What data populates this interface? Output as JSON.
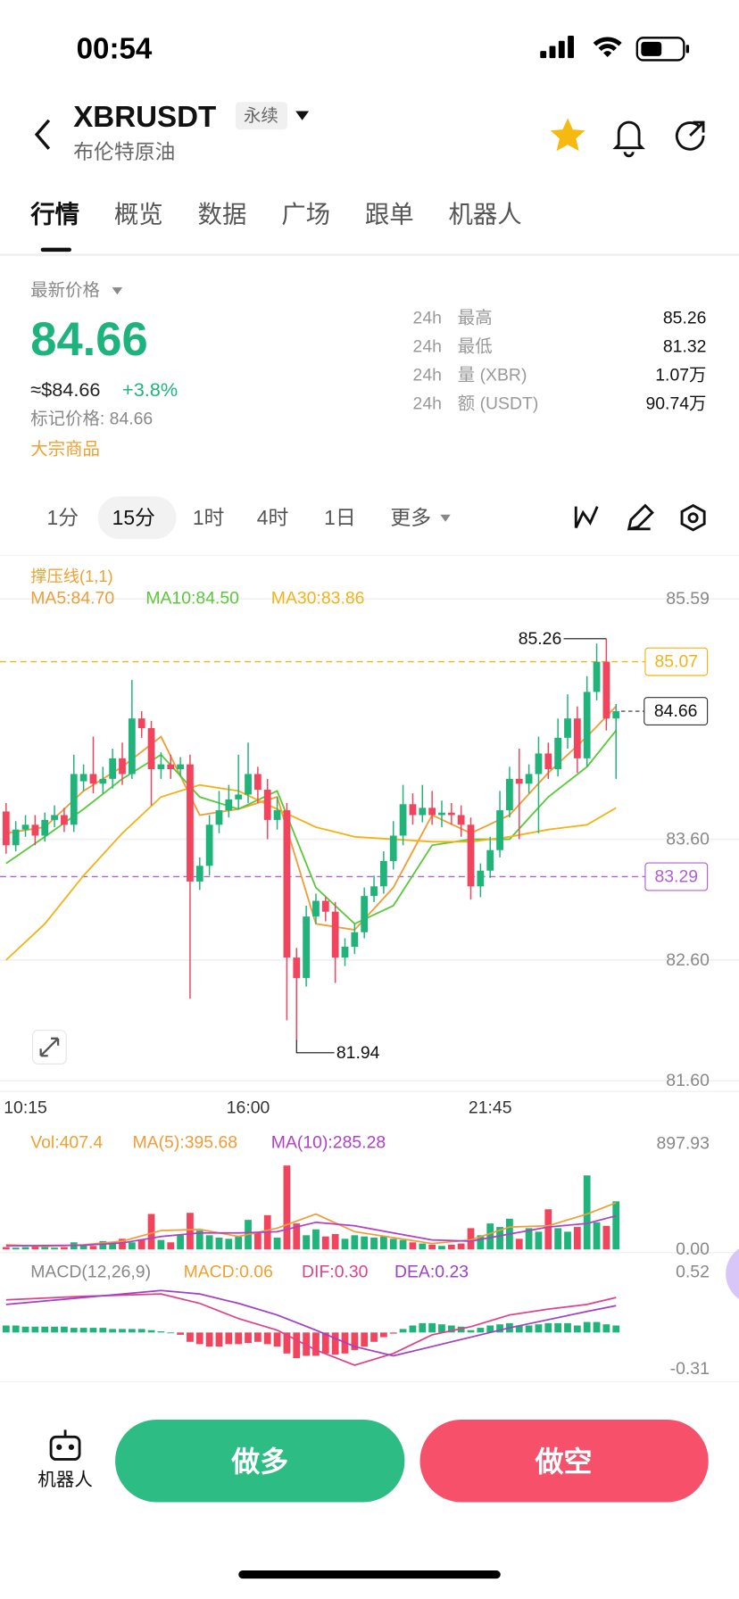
{
  "status": {
    "time": "00:54"
  },
  "header": {
    "symbol": "XBRUSDT",
    "tag": "永续",
    "subtitle": "布伦特原油"
  },
  "tabs": [
    "行情",
    "概览",
    "数据",
    "广场",
    "跟单",
    "机器人"
  ],
  "ticker": {
    "label": "最新价格",
    "price": "84.66",
    "approx": "≈$84.66",
    "change": "+3.8%",
    "mark_price": "标记价格: 84.66",
    "category": "大宗商品"
  },
  "stats": {
    "rows": [
      [
        "24h",
        "最高",
        "85.26"
      ],
      [
        "24h",
        "最低",
        "81.32"
      ],
      [
        "24h",
        "量 (XBR)",
        "1.07万"
      ],
      [
        "24h",
        "额 (USDT)",
        "90.74万"
      ]
    ]
  },
  "intervals": [
    "1分",
    "15分",
    "1时",
    "4时",
    "1日",
    "更多"
  ],
  "chart_data": [
    {
      "type": "candlestick",
      "indicator": "撑压线(1,1)",
      "up_color": "#20b37a",
      "down_color": "#f2455d",
      "open": [
        83.83,
        83.55,
        83.68,
        83.72,
        83.63,
        83.76,
        83.8,
        83.72,
        84.08,
        84.14,
        84.06,
        84.1,
        84.27,
        84.14,
        84.6,
        84.52,
        84.18,
        84.22,
        84.18,
        84.22,
        83.25,
        83.38,
        83.72,
        83.84,
        83.93,
        83.97,
        84.14,
        84.01,
        83.76,
        83.84,
        82.62,
        82.45,
        82.96,
        83.09,
        83.0,
        82.62,
        82.71,
        82.83,
        83.13,
        83.21,
        83.42,
        83.63,
        83.89,
        83.8,
        83.86,
        83.8,
        83.82,
        83.8,
        83.72,
        83.21,
        83.34,
        83.51,
        83.84,
        84.1,
        84.06,
        84.14,
        84.31,
        84.18,
        84.44,
        84.6,
        84.27,
        84.82,
        85.07,
        84.6
      ],
      "high": [
        83.9,
        83.75,
        83.8,
        83.8,
        83.82,
        83.88,
        83.86,
        84.3,
        84.22,
        84.45,
        84.2,
        84.35,
        84.4,
        84.92,
        84.66,
        84.58,
        84.32,
        84.3,
        84.28,
        84.3,
        83.45,
        83.8,
        84.0,
        84.05,
        84.3,
        84.4,
        84.2,
        84.1,
        83.95,
        83.9,
        82.7,
        83.05,
        83.15,
        83.12,
        83.08,
        82.78,
        82.9,
        83.2,
        83.3,
        83.5,
        83.75,
        84.05,
        83.98,
        84.05,
        84.0,
        83.92,
        83.9,
        83.88,
        83.78,
        83.4,
        83.62,
        84.0,
        84.2,
        84.35,
        84.22,
        84.45,
        84.4,
        84.6,
        84.8,
        84.7,
        84.95,
        85.22,
        85.26,
        84.72
      ],
      "low": [
        83.48,
        83.5,
        83.62,
        83.55,
        83.58,
        83.7,
        83.66,
        83.66,
        84.0,
        83.98,
        83.98,
        84.02,
        84.05,
        84.1,
        84.44,
        83.88,
        84.1,
        84.1,
        84.12,
        82.28,
        83.18,
        83.3,
        83.65,
        83.78,
        83.85,
        83.9,
        83.9,
        83.6,
        83.68,
        82.1,
        81.94,
        82.38,
        82.9,
        82.92,
        82.41,
        82.55,
        82.65,
        82.78,
        83.08,
        83.15,
        83.35,
        83.55,
        83.72,
        83.74,
        83.72,
        83.7,
        83.72,
        83.62,
        83.1,
        83.12,
        83.28,
        83.45,
        83.78,
        83.6,
        83.98,
        83.65,
        84.1,
        84.12,
        84.35,
        84.15,
        84.2,
        84.75,
        84.5,
        84.1
      ],
      "close": [
        83.55,
        83.68,
        83.72,
        83.63,
        83.76,
        83.8,
        83.72,
        84.14,
        84.14,
        84.06,
        84.1,
        84.27,
        84.14,
        84.6,
        84.52,
        84.18,
        84.22,
        84.18,
        84.22,
        83.25,
        83.38,
        83.72,
        83.84,
        83.93,
        83.97,
        84.14,
        84.01,
        83.76,
        83.84,
        82.62,
        82.45,
        82.96,
        83.09,
        83.0,
        82.62,
        82.71,
        82.83,
        83.13,
        83.21,
        83.42,
        83.63,
        83.89,
        83.8,
        83.86,
        83.8,
        83.82,
        83.8,
        83.72,
        83.21,
        83.34,
        83.51,
        83.84,
        84.1,
        84.06,
        84.14,
        84.31,
        84.18,
        84.44,
        84.6,
        84.27,
        84.82,
        85.07,
        84.6,
        84.66
      ],
      "ma": [
        {
          "label": "MA5:84.70",
          "color": "#f29c38",
          "x": [
            0,
            4,
            8,
            12,
            16,
            20,
            24,
            28,
            32,
            36,
            40,
            44,
            48,
            52,
            56,
            60,
            63
          ],
          "values": [
            83.65,
            83.7,
            84.0,
            84.2,
            84.45,
            83.8,
            83.85,
            83.95,
            82.9,
            82.85,
            83.2,
            83.8,
            83.65,
            83.8,
            84.15,
            84.45,
            84.7
          ]
        },
        {
          "label": "MA10:84.50",
          "color": "#5ac93a",
          "x": [
            0,
            4,
            8,
            12,
            16,
            20,
            24,
            28,
            32,
            36,
            40,
            44,
            48,
            52,
            56,
            60,
            63
          ],
          "values": [
            83.4,
            83.62,
            83.85,
            84.1,
            84.3,
            83.95,
            83.85,
            84.0,
            83.2,
            82.9,
            83.05,
            83.55,
            83.6,
            83.6,
            83.95,
            84.2,
            84.5
          ]
        },
        {
          "label": "MA30:83.86",
          "color": "#f2b318",
          "x": [
            0,
            4,
            8,
            12,
            16,
            20,
            24,
            28,
            32,
            36,
            40,
            44,
            48,
            52,
            56,
            60,
            63
          ],
          "values": [
            82.6,
            82.9,
            83.3,
            83.65,
            83.95,
            84.05,
            84.0,
            83.85,
            83.7,
            83.62,
            83.6,
            83.58,
            83.58,
            83.62,
            83.68,
            83.72,
            83.86
          ]
        }
      ],
      "xlim": [
        -0.63,
        75.7
      ],
      "xticks": [
        {
          "value": 2,
          "label": "10:15"
        },
        {
          "value": 25,
          "label": "16:00"
        },
        {
          "value": 50,
          "label": "21:45"
        }
      ],
      "ylim": [
        81.52,
        85.95
      ],
      "yticks": [
        {
          "value": 81.6,
          "label": "81.60"
        },
        {
          "value": 82.6,
          "label": "82.60"
        },
        {
          "value": 83.6,
          "label": "83.60"
        },
        85.59
      ],
      "grid": true,
      "levels": [
        {
          "value": 85.07,
          "color": "#f2b318"
        },
        {
          "value": 83.29,
          "color": "#b25fd6"
        }
      ],
      "last_price": 84.66
    },
    {
      "type": "volume",
      "legend": [
        {
          "label": "Vol:407.4",
          "color": "#f0a030"
        },
        {
          "label": "MA(5):395.68",
          "color": "#f29c38"
        },
        {
          "label": "MA(10):285.28",
          "color": "#b040c8"
        }
      ],
      "values": [
        20,
        15,
        20,
        25,
        20,
        15,
        20,
        60,
        40,
        30,
        70,
        60,
        90,
        60,
        80,
        300,
        80,
        60,
        120,
        310,
        160,
        120,
        100,
        90,
        110,
        250,
        140,
        290,
        100,
        711,
        220,
        120,
        170,
        110,
        130,
        90,
        120,
        110,
        100,
        110,
        90,
        80,
        60,
        50,
        40,
        30,
        40,
        50,
        180,
        120,
        220,
        190,
        260,
        90,
        180,
        150,
        340,
        180,
        150,
        190,
        627,
        230,
        200,
        407.4
      ],
      "lines": [
        {
          "color": "#f29c38",
          "x": [
            0,
            4,
            8,
            12,
            16,
            20,
            24,
            28,
            32,
            36,
            40,
            44,
            48,
            52,
            56,
            60,
            63
          ],
          "values": [
            40,
            25,
            40,
            70,
            160,
            170,
            110,
            180,
            300,
            150,
            100,
            50,
            80,
            190,
            200,
            300,
            395.68
          ]
        },
        {
          "color": "#b040c8",
          "x": [
            0,
            8,
            12,
            16,
            20,
            24,
            28,
            32,
            36,
            40,
            44,
            48,
            52,
            56,
            60,
            63
          ],
          "values": [
            30,
            35,
            55,
            110,
            140,
            140,
            150,
            230,
            200,
            140,
            80,
            70,
            130,
            190,
            220,
            285.28
          ]
        }
      ],
      "ylim": [
        0,
        897.93
      ],
      "yticks": [
        {
          "value": 0,
          "label": "0.00"
        },
        897.93
      ]
    },
    {
      "type": "macd",
      "legend": [
        {
          "label": "MACD(12,26,9)",
          "color": "#888888"
        },
        {
          "label": "MACD:0.06",
          "color": "#f0a030"
        },
        {
          "label": "DIF:0.30",
          "color": "#e0408a"
        },
        {
          "label": "DEA:0.23",
          "color": "#a040c8"
        }
      ],
      "values": [
        0.06,
        0.06,
        0.05,
        0.05,
        0.05,
        0.05,
        0.05,
        0.04,
        0.04,
        0.04,
        0.04,
        0.03,
        0.03,
        0.03,
        0.03,
        0.02,
        0.01,
        0,
        -0.02,
        -0.08,
        -0.1,
        -0.12,
        -0.12,
        -0.1,
        -0.1,
        -0.09,
        -0.08,
        -0.1,
        -0.12,
        -0.18,
        -0.22,
        -0.2,
        -0.2,
        -0.18,
        -0.19,
        -0.18,
        -0.15,
        -0.12,
        -0.08,
        -0.04,
        -0.01,
        0.03,
        0.06,
        0.08,
        0.08,
        0.07,
        0.06,
        0.05,
        0.02,
        0.04,
        0.06,
        0.07,
        0.08,
        0.06,
        0.06,
        0.07,
        0.08,
        0.08,
        0.08,
        0.06,
        0.09,
        0.09,
        0.07,
        0.06
      ],
      "lines": [
        {
          "color": "#e0408a",
          "x": [
            0,
            8,
            16,
            20,
            24,
            28,
            32,
            36,
            40,
            44,
            48,
            52,
            56,
            60,
            63
          ],
          "values": [
            0.28,
            0.31,
            0.33,
            0.25,
            0.12,
            0.02,
            -0.15,
            -0.28,
            -0.18,
            -0.02,
            0.05,
            0.15,
            0.2,
            0.24,
            0.3
          ]
        },
        {
          "color": "#a040c8",
          "x": [
            0,
            8,
            16,
            20,
            24,
            28,
            32,
            36,
            40,
            44,
            48,
            52,
            56,
            60,
            63
          ],
          "values": [
            0.24,
            0.3,
            0.36,
            0.33,
            0.25,
            0.15,
            0.02,
            -0.12,
            -0.2,
            -0.12,
            -0.04,
            0.04,
            0.11,
            0.18,
            0.23
          ]
        }
      ],
      "ylim": [
        -0.31,
        0.52
      ],
      "yticks": [
        -0.31,
        0.52
      ]
    }
  ],
  "actions": {
    "robot": "机器人",
    "long": "做多",
    "short": "做空"
  }
}
